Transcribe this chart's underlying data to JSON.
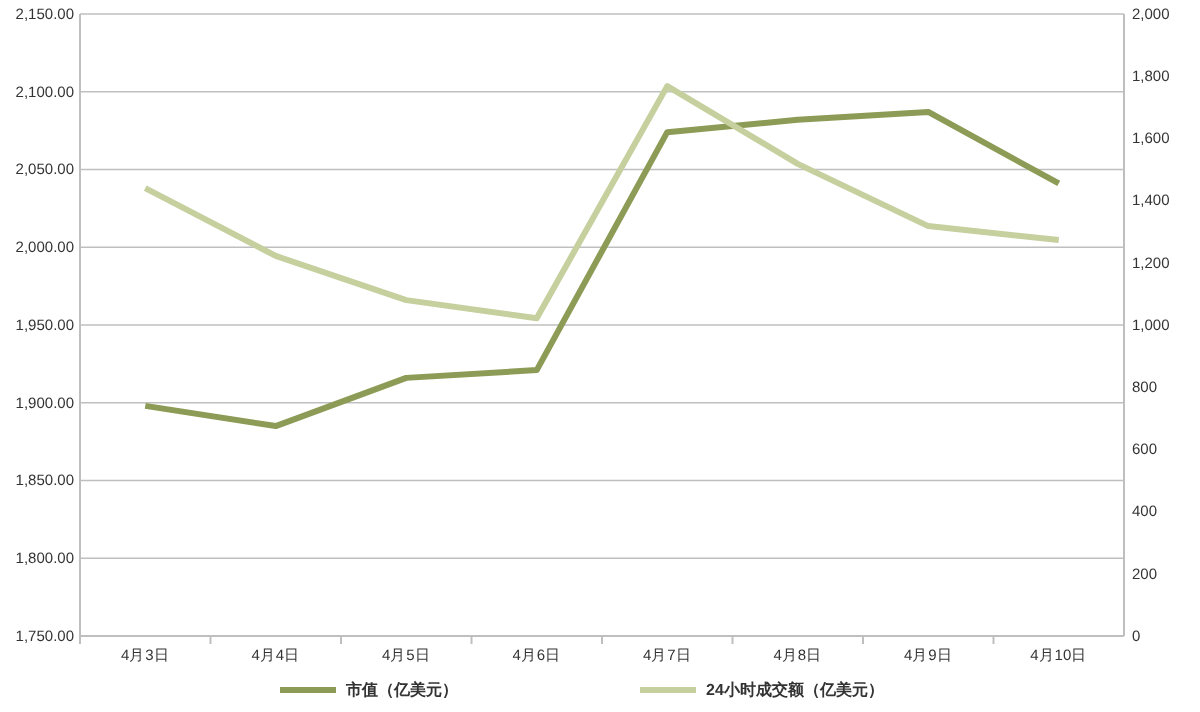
{
  "chart_data": {
    "type": "line",
    "categories": [
      "4月3日",
      "4月4日",
      "4月5日",
      "4月6日",
      "4月7日",
      "4月8日",
      "4月9日",
      "4月10日"
    ],
    "series": [
      {
        "name": "市值（亿美元）",
        "color": "#8c9b55",
        "values": [
          1898,
          1885,
          1916,
          1921,
          2074,
          2082,
          2087,
          2041
        ]
      },
      {
        "name": "24小时成交额（亿美元）",
        "color": "#c6cf9e",
        "axis": "y2",
        "values": [
          1440,
          1222,
          1080,
          1022,
          1768,
          1518,
          1318,
          1273
        ]
      }
    ],
    "ylim": [
      1750,
      2150
    ],
    "yticks": [
      {
        "value": 1750,
        "label": "1,750.00"
      },
      {
        "value": 1800,
        "label": "1,800.00"
      },
      {
        "value": 1850,
        "label": "1,850.00"
      },
      {
        "value": 1900,
        "label": "1,900.00"
      },
      {
        "value": 1950,
        "label": "1,950.00"
      },
      {
        "value": 2000,
        "label": "2,000.00"
      },
      {
        "value": 2050,
        "label": "2,050.00"
      },
      {
        "value": 2100,
        "label": "2,100.00"
      },
      {
        "value": 2150,
        "label": "2,150.00"
      }
    ],
    "y2lim": [
      0,
      2000
    ],
    "y2ticks": [
      0,
      200,
      400,
      600,
      800,
      {
        "value": 1000,
        "label": "1,000"
      },
      {
        "value": 1200,
        "label": "1,200"
      },
      {
        "value": 1400,
        "label": "1,400"
      },
      {
        "value": 1600,
        "label": "1,600"
      },
      {
        "value": 1800,
        "label": "1,800"
      },
      {
        "value": 2000,
        "label": "2,000"
      }
    ],
    "grid": "y",
    "legend": "bottom",
    "marker": "none",
    "line_style": "solid"
  }
}
